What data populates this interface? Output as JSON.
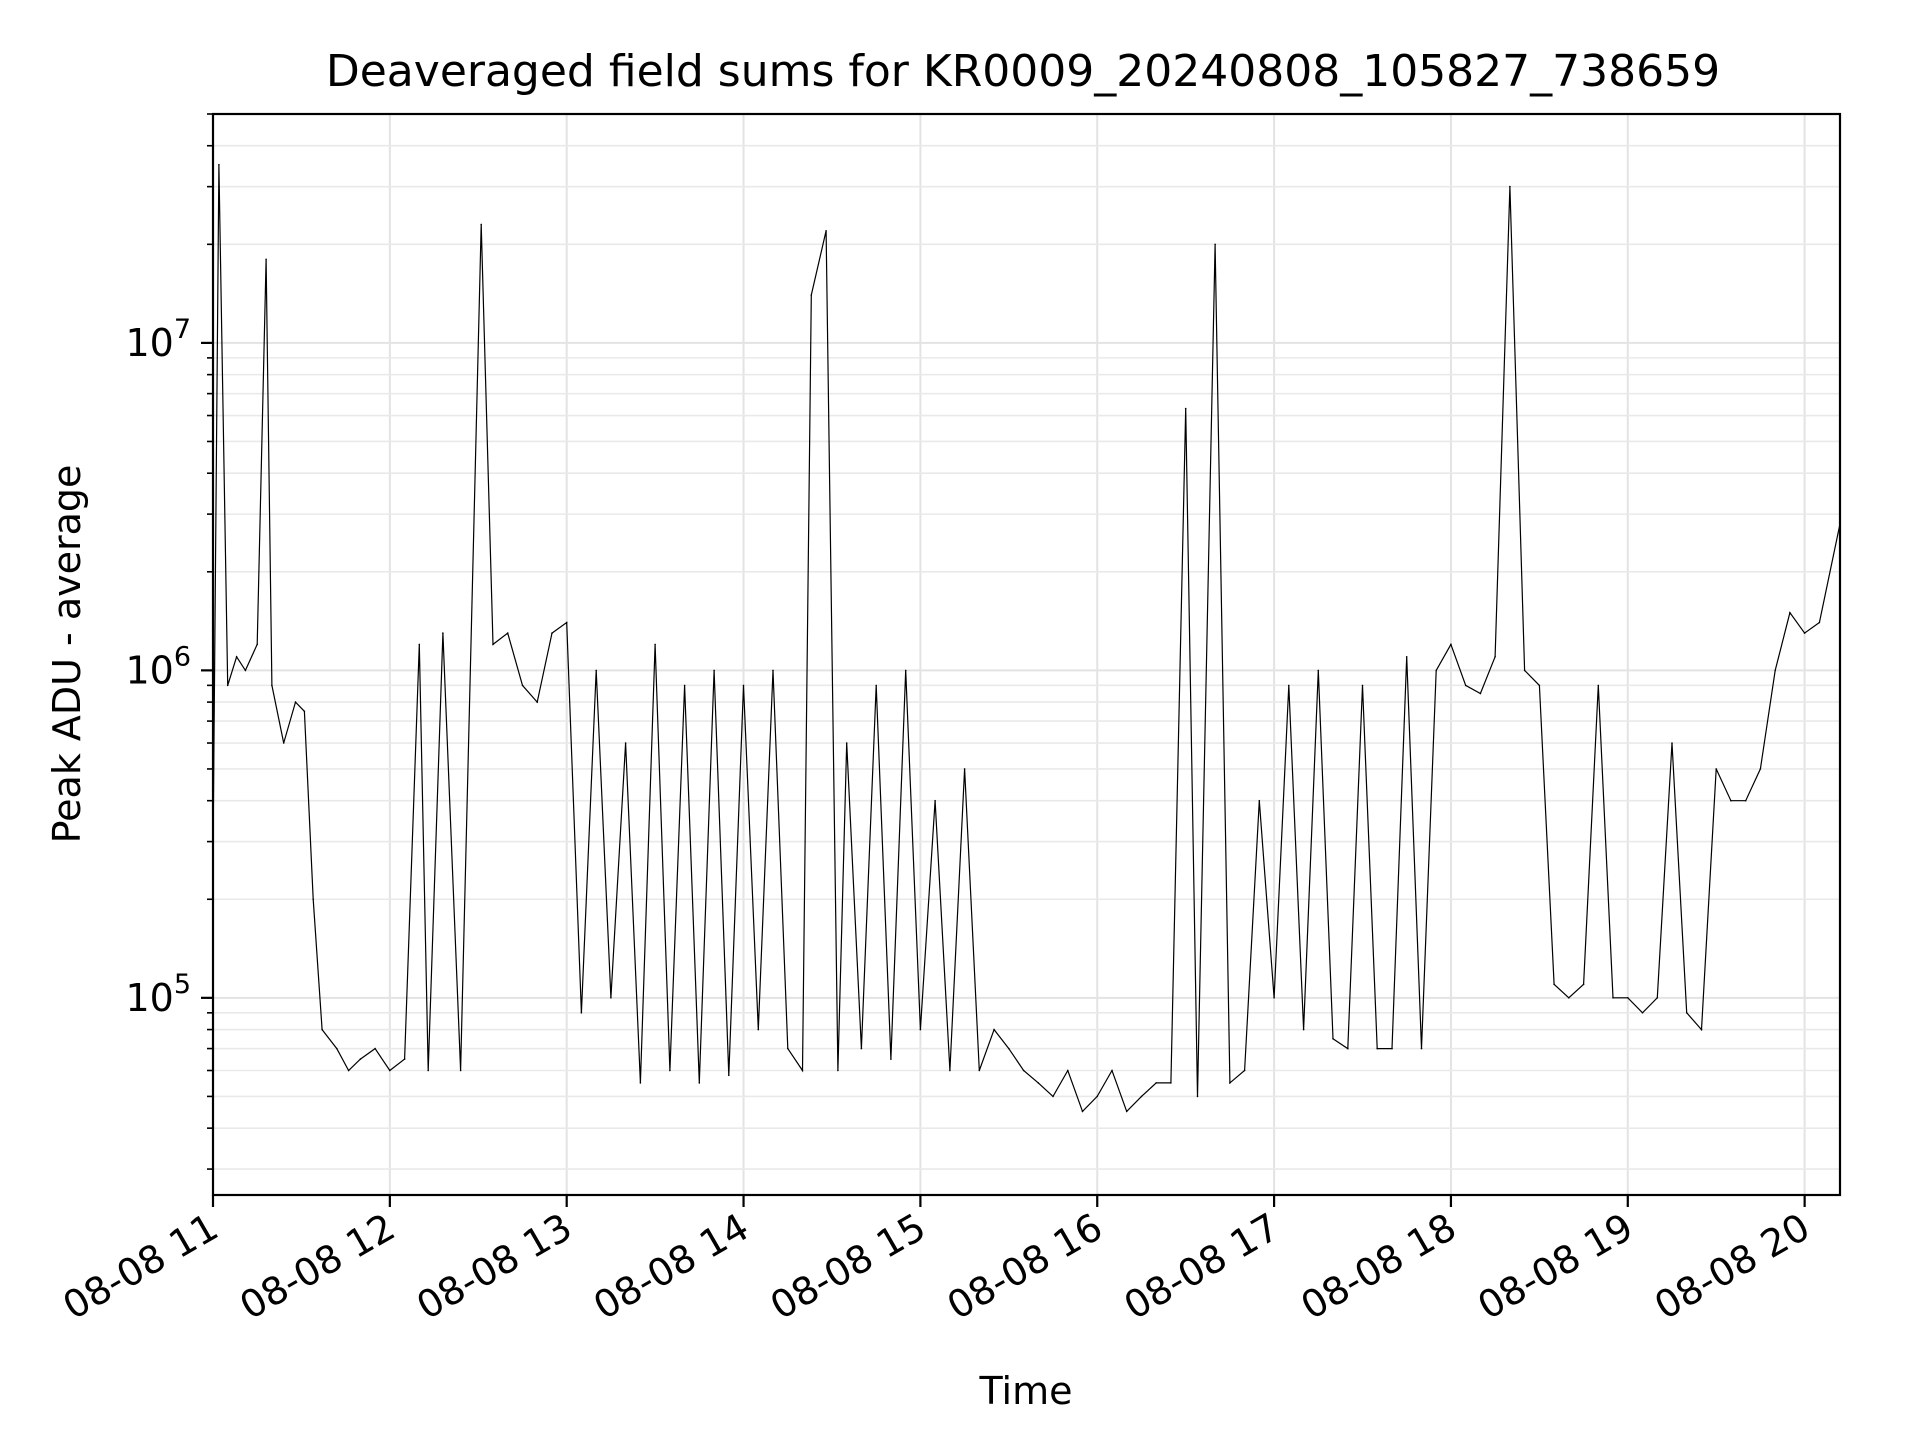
{
  "chart_data": {
    "type": "line",
    "title": "Deaveraged field sums for KR0009_20240808_105827_738659",
    "xlabel": "Time",
    "ylabel": "Peak ADU - average",
    "yscale": "log",
    "ylim": [
      25000,
      50000000
    ],
    "xlim": [
      "08-08 11:00",
      "08-08 20:12"
    ],
    "grid": true,
    "legend": "none",
    "line_color": "#000000",
    "x_ticks": [
      {
        "label": "08-08 11",
        "value": "08-08 11:00"
      },
      {
        "label": "08-08 12",
        "value": "08-08 12:00"
      },
      {
        "label": "08-08 13",
        "value": "08-08 13:00"
      },
      {
        "label": "08-08 14",
        "value": "08-08 14:00"
      },
      {
        "label": "08-08 15",
        "value": "08-08 15:00"
      },
      {
        "label": "08-08 16",
        "value": "08-08 16:00"
      },
      {
        "label": "08-08 17",
        "value": "08-08 17:00"
      },
      {
        "label": "08-08 18",
        "value": "08-08 18:00"
      },
      {
        "label": "08-08 19",
        "value": "08-08 19:00"
      },
      {
        "label": "08-08 20",
        "value": "08-08 20:00"
      }
    ],
    "y_ticks": [
      {
        "base": "10",
        "exp": "5",
        "value": 100000
      },
      {
        "base": "10",
        "exp": "6",
        "value": 1000000
      },
      {
        "base": "10",
        "exp": "7",
        "value": 10000000
      }
    ],
    "series": [
      {
        "color": "#000000",
        "x": [
          "08-08 11:00",
          "08-08 11:02",
          "08-08 11:05",
          "08-08 11:08",
          "08-08 11:11",
          "08-08 11:15",
          "08-08 11:18",
          "08-08 11:20",
          "08-08 11:24",
          "08-08 11:28",
          "08-08 11:31",
          "08-08 11:34",
          "08-08 11:37",
          "08-08 11:42",
          "08-08 11:46",
          "08-08 11:50",
          "08-08 11:55",
          "08-08 12:00",
          "08-08 12:05",
          "08-08 12:10",
          "08-08 12:13",
          "08-08 12:18",
          "08-08 12:24",
          "08-08 12:31",
          "08-08 12:35",
          "08-08 12:40",
          "08-08 12:45",
          "08-08 12:50",
          "08-08 12:55",
          "08-08 13:00",
          "08-08 13:05",
          "08-08 13:10",
          "08-08 13:15",
          "08-08 13:20",
          "08-08 13:25",
          "08-08 13:30",
          "08-08 13:35",
          "08-08 13:40",
          "08-08 13:45",
          "08-08 13:50",
          "08-08 13:55",
          "08-08 14:00",
          "08-08 14:05",
          "08-08 14:10",
          "08-08 14:15",
          "08-08 14:20",
          "08-08 14:23",
          "08-08 14:28",
          "08-08 14:32",
          "08-08 14:35",
          "08-08 14:40",
          "08-08 14:45",
          "08-08 14:50",
          "08-08 14:55",
          "08-08 15:00",
          "08-08 15:05",
          "08-08 15:10",
          "08-08 15:15",
          "08-08 15:20",
          "08-08 15:25",
          "08-08 15:30",
          "08-08 15:35",
          "08-08 15:40",
          "08-08 15:45",
          "08-08 15:50",
          "08-08 15:55",
          "08-08 16:00",
          "08-08 16:05",
          "08-08 16:10",
          "08-08 16:15",
          "08-08 16:20",
          "08-08 16:25",
          "08-08 16:30",
          "08-08 16:34",
          "08-08 16:40",
          "08-08 16:45",
          "08-08 16:50",
          "08-08 16:55",
          "08-08 17:00",
          "08-08 17:05",
          "08-08 17:10",
          "08-08 17:15",
          "08-08 17:20",
          "08-08 17:25",
          "08-08 17:30",
          "08-08 17:35",
          "08-08 17:40",
          "08-08 17:45",
          "08-08 17:50",
          "08-08 17:55",
          "08-08 18:00",
          "08-08 18:05",
          "08-08 18:10",
          "08-08 18:15",
          "08-08 18:20",
          "08-08 18:25",
          "08-08 18:30",
          "08-08 18:35",
          "08-08 18:40",
          "08-08 18:45",
          "08-08 18:50",
          "08-08 18:55",
          "08-08 19:00",
          "08-08 19:05",
          "08-08 19:10",
          "08-08 19:15",
          "08-08 19:20",
          "08-08 19:25",
          "08-08 19:30",
          "08-08 19:35",
          "08-08 19:40",
          "08-08 19:45",
          "08-08 19:50",
          "08-08 19:55",
          "08-08 20:00",
          "08-08 20:05",
          "08-08 20:12"
        ],
        "y": [
          270000,
          35000000,
          900000,
          1100000,
          1000000,
          1200000,
          18000000,
          900000,
          600000,
          800000,
          750000,
          200000,
          80000,
          70000,
          60000,
          65000,
          70000,
          60000,
          65000,
          1200000,
          60000,
          1300000,
          60000,
          23000000,
          1200000,
          1300000,
          900000,
          800000,
          1300000,
          1400000,
          90000,
          1000000,
          100000,
          600000,
          55000,
          1200000,
          60000,
          900000,
          55000,
          1000000,
          58000,
          900000,
          80000,
          1000000,
          70000,
          60000,
          14000000,
          22000000,
          60000,
          600000,
          70000,
          900000,
          65000,
          1000000,
          80000,
          400000,
          60000,
          500000,
          60000,
          80000,
          70000,
          60000,
          55000,
          50000,
          60000,
          45000,
          50000,
          60000,
          45000,
          50000,
          55000,
          55000,
          6300000,
          50000,
          20000000,
          55000,
          60000,
          400000,
          100000,
          900000,
          80000,
          1000000,
          75000,
          70000,
          900000,
          70000,
          70000,
          1100000,
          70000,
          1000000,
          1200000,
          900000,
          850000,
          1100000,
          30000000,
          1000000,
          900000,
          110000,
          100000,
          110000,
          900000,
          100000,
          100000,
          90000,
          100000,
          600000,
          90000,
          80000,
          500000,
          400000,
          400000,
          500000,
          1000000,
          1500000,
          1300000,
          1400000,
          2800000
        ]
      }
    ]
  }
}
